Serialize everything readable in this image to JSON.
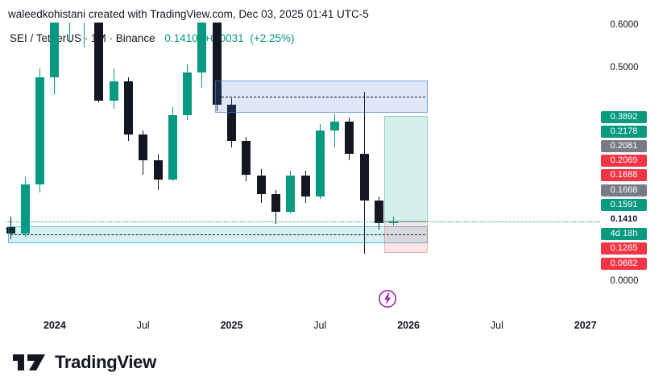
{
  "header": {
    "attribution": "waleedkohistani created with TradingView.com, Dec 03, 2025 01:41 UTC-5"
  },
  "legend": {
    "symbol": "SEI / TetherUS",
    "interval": "1M",
    "exchange": "Binance",
    "symbol_line": "SEI / TetherUS · 1M · Binance",
    "last_price": "0.1410",
    "change": "+0.0031",
    "change_pct": "(+2.25%)"
  },
  "footer": {
    "brand": "TradingView"
  },
  "colors": {
    "up": "#089981",
    "down": "#131722",
    "teal": "#089981",
    "red": "#f23645",
    "badge_gray": "#787b86",
    "resistance_blue": "#4f7bd9",
    "support_cyan": "#00a5bd",
    "purple": "#9c27b0",
    "text": "#131722"
  },
  "chart_data": {
    "type": "candlestick",
    "title": "SEI / TetherUS · 1M · Binance",
    "symbol": "SEI / TetherUS",
    "interval": "1M",
    "exchange": "Binance",
    "current_price": 0.141,
    "countdown": "4d 18h",
    "y_axis": {
      "min": 0.0,
      "max": 0.62,
      "visible_ticks": [
        {
          "text": "0.6000",
          "price": 0.6
        },
        {
          "text": "0.5000",
          "price": 0.5
        },
        {
          "text": "0.0000",
          "price": 0.0
        }
      ]
    },
    "stacked_price_labels": [
      {
        "text": "0.3892",
        "style": "green"
      },
      {
        "text": "0.2178",
        "style": "green"
      },
      {
        "text": "0.2081",
        "style": "gray"
      },
      {
        "text": "0.2069",
        "style": "red"
      },
      {
        "text": "0.1688",
        "style": "red"
      },
      {
        "text": "0.1668",
        "style": "gray"
      },
      {
        "text": "0.1591",
        "style": "green"
      },
      {
        "text": "0.1410",
        "style": "plain"
      },
      {
        "text": "4d 18h",
        "style": "countdown"
      },
      {
        "text": "0.1265",
        "style": "red"
      },
      {
        "text": "0.0682",
        "style": "red"
      }
    ],
    "x_axis_labels": [
      {
        "text": "2024",
        "month_index": 3,
        "major": true
      },
      {
        "text": "Jul",
        "month_index": 9,
        "major": false
      },
      {
        "text": "2025",
        "month_index": 15,
        "major": true
      },
      {
        "text": "Jul",
        "month_index": 21,
        "major": false
      },
      {
        "text": "2026",
        "month_index": 27,
        "major": true
      },
      {
        "text": "Jul",
        "month_index": 33,
        "major": false
      },
      {
        "text": "2027",
        "month_index": 39,
        "major": true
      }
    ],
    "candles": [
      {
        "t": "Oct 2023",
        "o": 0.128,
        "h": 0.152,
        "l": 0.1,
        "c": 0.113
      },
      {
        "t": "Nov 2023",
        "o": 0.113,
        "h": 0.245,
        "l": 0.106,
        "c": 0.228
      },
      {
        "t": "Dec 2023",
        "o": 0.228,
        "h": 0.5,
        "l": 0.21,
        "c": 0.48
      },
      {
        "t": "Jan 2024",
        "o": 0.48,
        "h": 0.65,
        "l": 0.44,
        "c": 0.64
      },
      {
        "t": "Feb 2024",
        "o": 0.64,
        "h": 0.7,
        "l": 0.56,
        "c": 0.68
      },
      {
        "t": "Mar 2024",
        "o": 0.68,
        "h": 0.72,
        "l": 0.55,
        "c": 0.7
      },
      {
        "t": "Apr 2024",
        "o": 0.7,
        "h": 0.71,
        "l": 0.42,
        "c": 0.425
      },
      {
        "t": "May 2024",
        "o": 0.425,
        "h": 0.5,
        "l": 0.405,
        "c": 0.47
      },
      {
        "t": "Jun 2024",
        "o": 0.47,
        "h": 0.48,
        "l": 0.33,
        "c": 0.345
      },
      {
        "t": "Jul 2024",
        "o": 0.345,
        "h": 0.355,
        "l": 0.25,
        "c": 0.285
      },
      {
        "t": "Aug 2024",
        "o": 0.285,
        "h": 0.3,
        "l": 0.215,
        "c": 0.24
      },
      {
        "t": "Sep 2024",
        "o": 0.24,
        "h": 0.41,
        "l": 0.235,
        "c": 0.39
      },
      {
        "t": "Oct 2024",
        "o": 0.39,
        "h": 0.51,
        "l": 0.38,
        "c": 0.49
      },
      {
        "t": "Nov 2024",
        "o": 0.49,
        "h": 0.65,
        "l": 0.455,
        "c": 0.63
      },
      {
        "t": "Dec 2024",
        "o": 0.63,
        "h": 0.66,
        "l": 0.4,
        "c": 0.415
      },
      {
        "t": "Jan 2025",
        "o": 0.415,
        "h": 0.43,
        "l": 0.315,
        "c": 0.33
      },
      {
        "t": "Feb 2025",
        "o": 0.33,
        "h": 0.34,
        "l": 0.235,
        "c": 0.25
      },
      {
        "t": "Mar 2025",
        "o": 0.25,
        "h": 0.265,
        "l": 0.185,
        "c": 0.205
      },
      {
        "t": "Apr 2025",
        "o": 0.205,
        "h": 0.215,
        "l": 0.135,
        "c": 0.165
      },
      {
        "t": "May 2025",
        "o": 0.165,
        "h": 0.26,
        "l": 0.16,
        "c": 0.25
      },
      {
        "t": "Jun 2025",
        "o": 0.25,
        "h": 0.26,
        "l": 0.185,
        "c": 0.2
      },
      {
        "t": "Jul 2025",
        "o": 0.2,
        "h": 0.37,
        "l": 0.195,
        "c": 0.355
      },
      {
        "t": "Aug 2025",
        "o": 0.355,
        "h": 0.395,
        "l": 0.315,
        "c": 0.375
      },
      {
        "t": "Sep 2025",
        "o": 0.375,
        "h": 0.385,
        "l": 0.285,
        "c": 0.3
      },
      {
        "t": "Oct 2025",
        "o": 0.3,
        "h": 0.445,
        "l": 0.066,
        "c": 0.19
      },
      {
        "t": "Nov 2025",
        "o": 0.19,
        "h": 0.2,
        "l": 0.123,
        "c": 0.137
      },
      {
        "t": "Dec 2025",
        "o": 0.137,
        "h": 0.153,
        "l": 0.132,
        "c": 0.141
      }
    ],
    "drawings": {
      "resistance_zone": {
        "price_top": 0.472,
        "price_bottom": 0.396
      },
      "support_zone": {
        "price_top": 0.1302,
        "price_bottom": 0.0906
      },
      "long_position": {
        "entry": 0.141,
        "target": 0.3892,
        "stop": 0.0682
      }
    }
  }
}
